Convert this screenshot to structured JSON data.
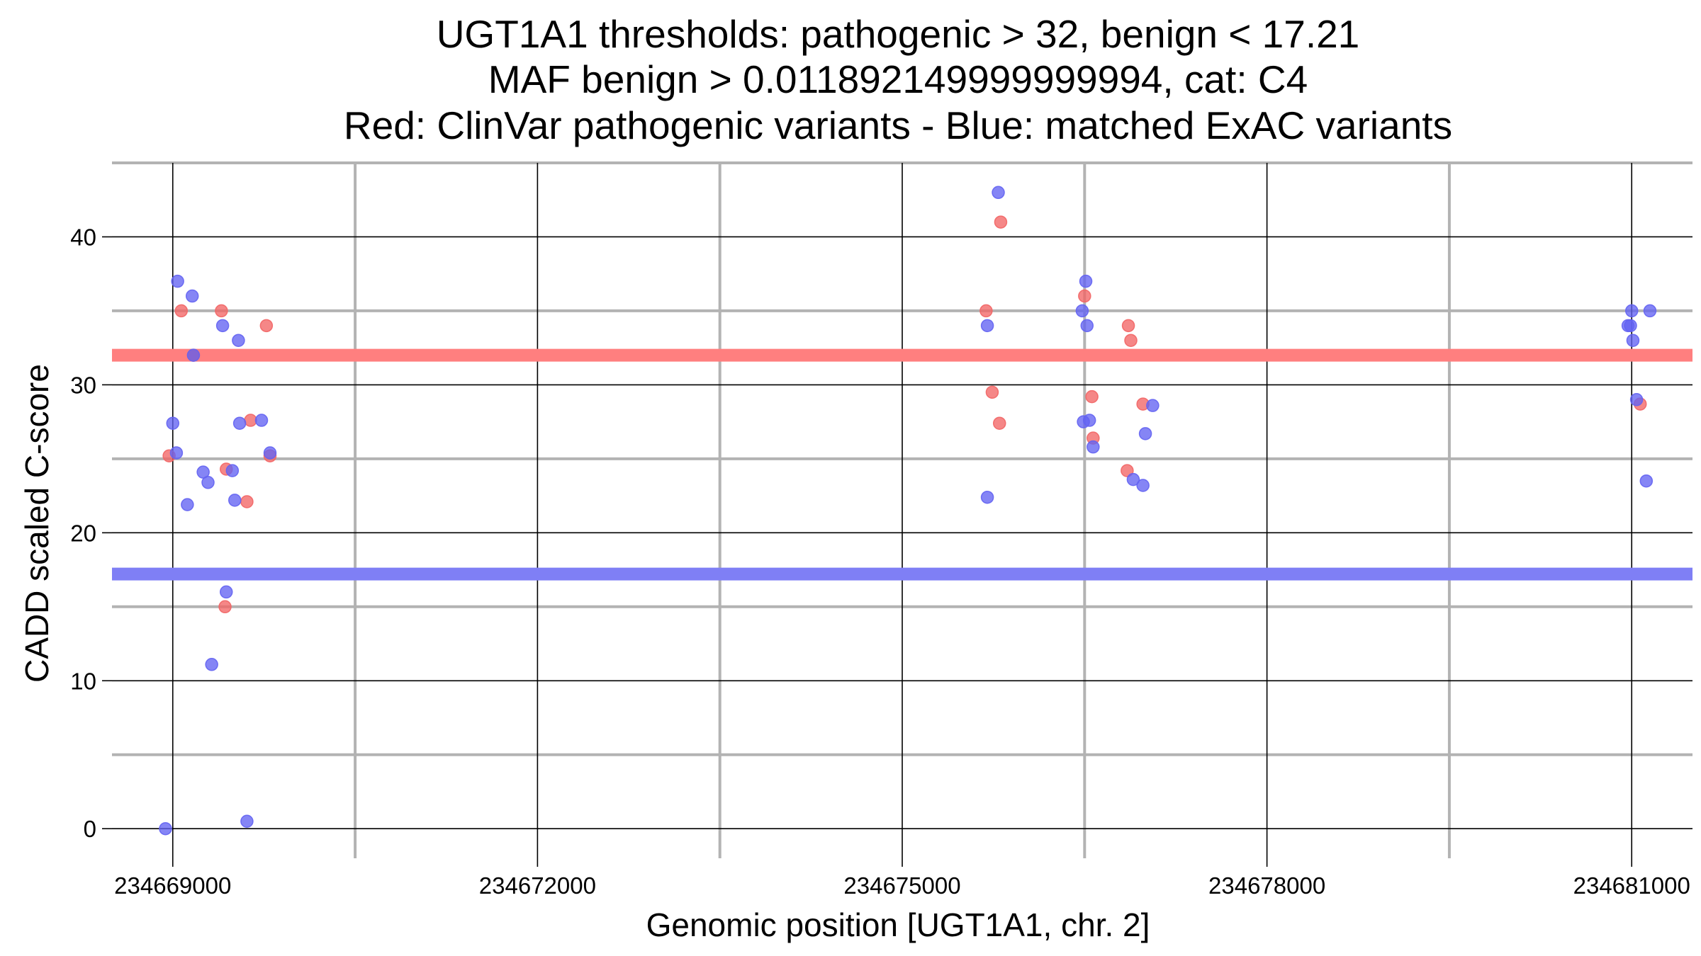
{
  "chart_data": {
    "type": "scatter",
    "title_lines": [
      "UGT1A1 thresholds: pathogenic > 32, benign < 17.21",
      "MAF benign > 0.011892149999999994, cat: C4",
      "Red: ClinVar pathogenic variants - Blue: matched ExAC variants"
    ],
    "xlabel": "Genomic position [UGT1A1, chr. 2]",
    "ylabel": "CADD scaled C-score",
    "xlim": [
      234668500,
      234681500
    ],
    "ylim": [
      -2,
      45
    ],
    "x_ticks": [
      234669000,
      234672000,
      234675000,
      234678000,
      234681000
    ],
    "x_tick_labels": [
      "234669000",
      "234672000",
      "234675000",
      "234678000",
      "234681000"
    ],
    "x_minor_ticks": [
      234670500,
      234673500,
      234676500,
      234679500
    ],
    "y_ticks": [
      0,
      10,
      20,
      30,
      40
    ],
    "y_tick_labels": [
      "0",
      "10",
      "20",
      "30",
      "40"
    ],
    "y_minor_ticks": [
      5,
      15,
      25,
      35,
      45
    ],
    "grid": true,
    "threshold_lines": [
      {
        "y": 32,
        "color": "#ff7f7f"
      },
      {
        "y": 17.21,
        "color": "#7f7ff5"
      }
    ],
    "series": [
      {
        "color": "#f26565",
        "points": [
          [
            234668970,
            25.2
          ],
          [
            234669070,
            35.0
          ],
          [
            234669170,
            32.0
          ],
          [
            234669400,
            35.0
          ],
          [
            234669440,
            24.3
          ],
          [
            234669430,
            15.0
          ],
          [
            234669610,
            22.1
          ],
          [
            234669640,
            27.6
          ],
          [
            234669770,
            34.0
          ],
          [
            234669800,
            25.2
          ],
          [
            234675690,
            35.0
          ],
          [
            234675740,
            29.5
          ],
          [
            234675800,
            27.4
          ],
          [
            234675810,
            41.0
          ],
          [
            234676500,
            36.0
          ],
          [
            234676560,
            29.2
          ],
          [
            234676570,
            26.4
          ],
          [
            234676860,
            34.0
          ],
          [
            234676880,
            33.0
          ],
          [
            234676850,
            24.2
          ],
          [
            234676980,
            28.7
          ],
          [
            234681070,
            28.7
          ]
        ]
      },
      {
        "color": "#6363f2",
        "points": [
          [
            234668940,
            0.0
          ],
          [
            234669000,
            27.4
          ],
          [
            234669030,
            25.4
          ],
          [
            234669040,
            37.0
          ],
          [
            234669120,
            21.9
          ],
          [
            234669160,
            36.0
          ],
          [
            234669170,
            32.0
          ],
          [
            234669250,
            24.1
          ],
          [
            234669290,
            23.4
          ],
          [
            234669320,
            11.1
          ],
          [
            234669410,
            34.0
          ],
          [
            234669440,
            16.0
          ],
          [
            234669490,
            24.2
          ],
          [
            234669510,
            22.2
          ],
          [
            234669540,
            33.0
          ],
          [
            234669550,
            27.4
          ],
          [
            234669610,
            0.5
          ],
          [
            234669730,
            27.6
          ],
          [
            234669800,
            25.4
          ],
          [
            234675700,
            34.0
          ],
          [
            234675700,
            22.4
          ],
          [
            234675790,
            43.0
          ],
          [
            234676480,
            35.0
          ],
          [
            234676490,
            27.5
          ],
          [
            234676510,
            37.0
          ],
          [
            234676520,
            34.0
          ],
          [
            234676540,
            27.6
          ],
          [
            234676570,
            25.8
          ],
          [
            234676900,
            23.6
          ],
          [
            234676980,
            23.2
          ],
          [
            234677000,
            26.7
          ],
          [
            234677060,
            28.6
          ],
          [
            234680970,
            34.0
          ],
          [
            234680990,
            34.0
          ],
          [
            234681000,
            35.0
          ],
          [
            234681010,
            33.0
          ],
          [
            234681040,
            29.0
          ],
          [
            234681120,
            23.5
          ],
          [
            234681150,
            35.0
          ]
        ]
      }
    ]
  }
}
